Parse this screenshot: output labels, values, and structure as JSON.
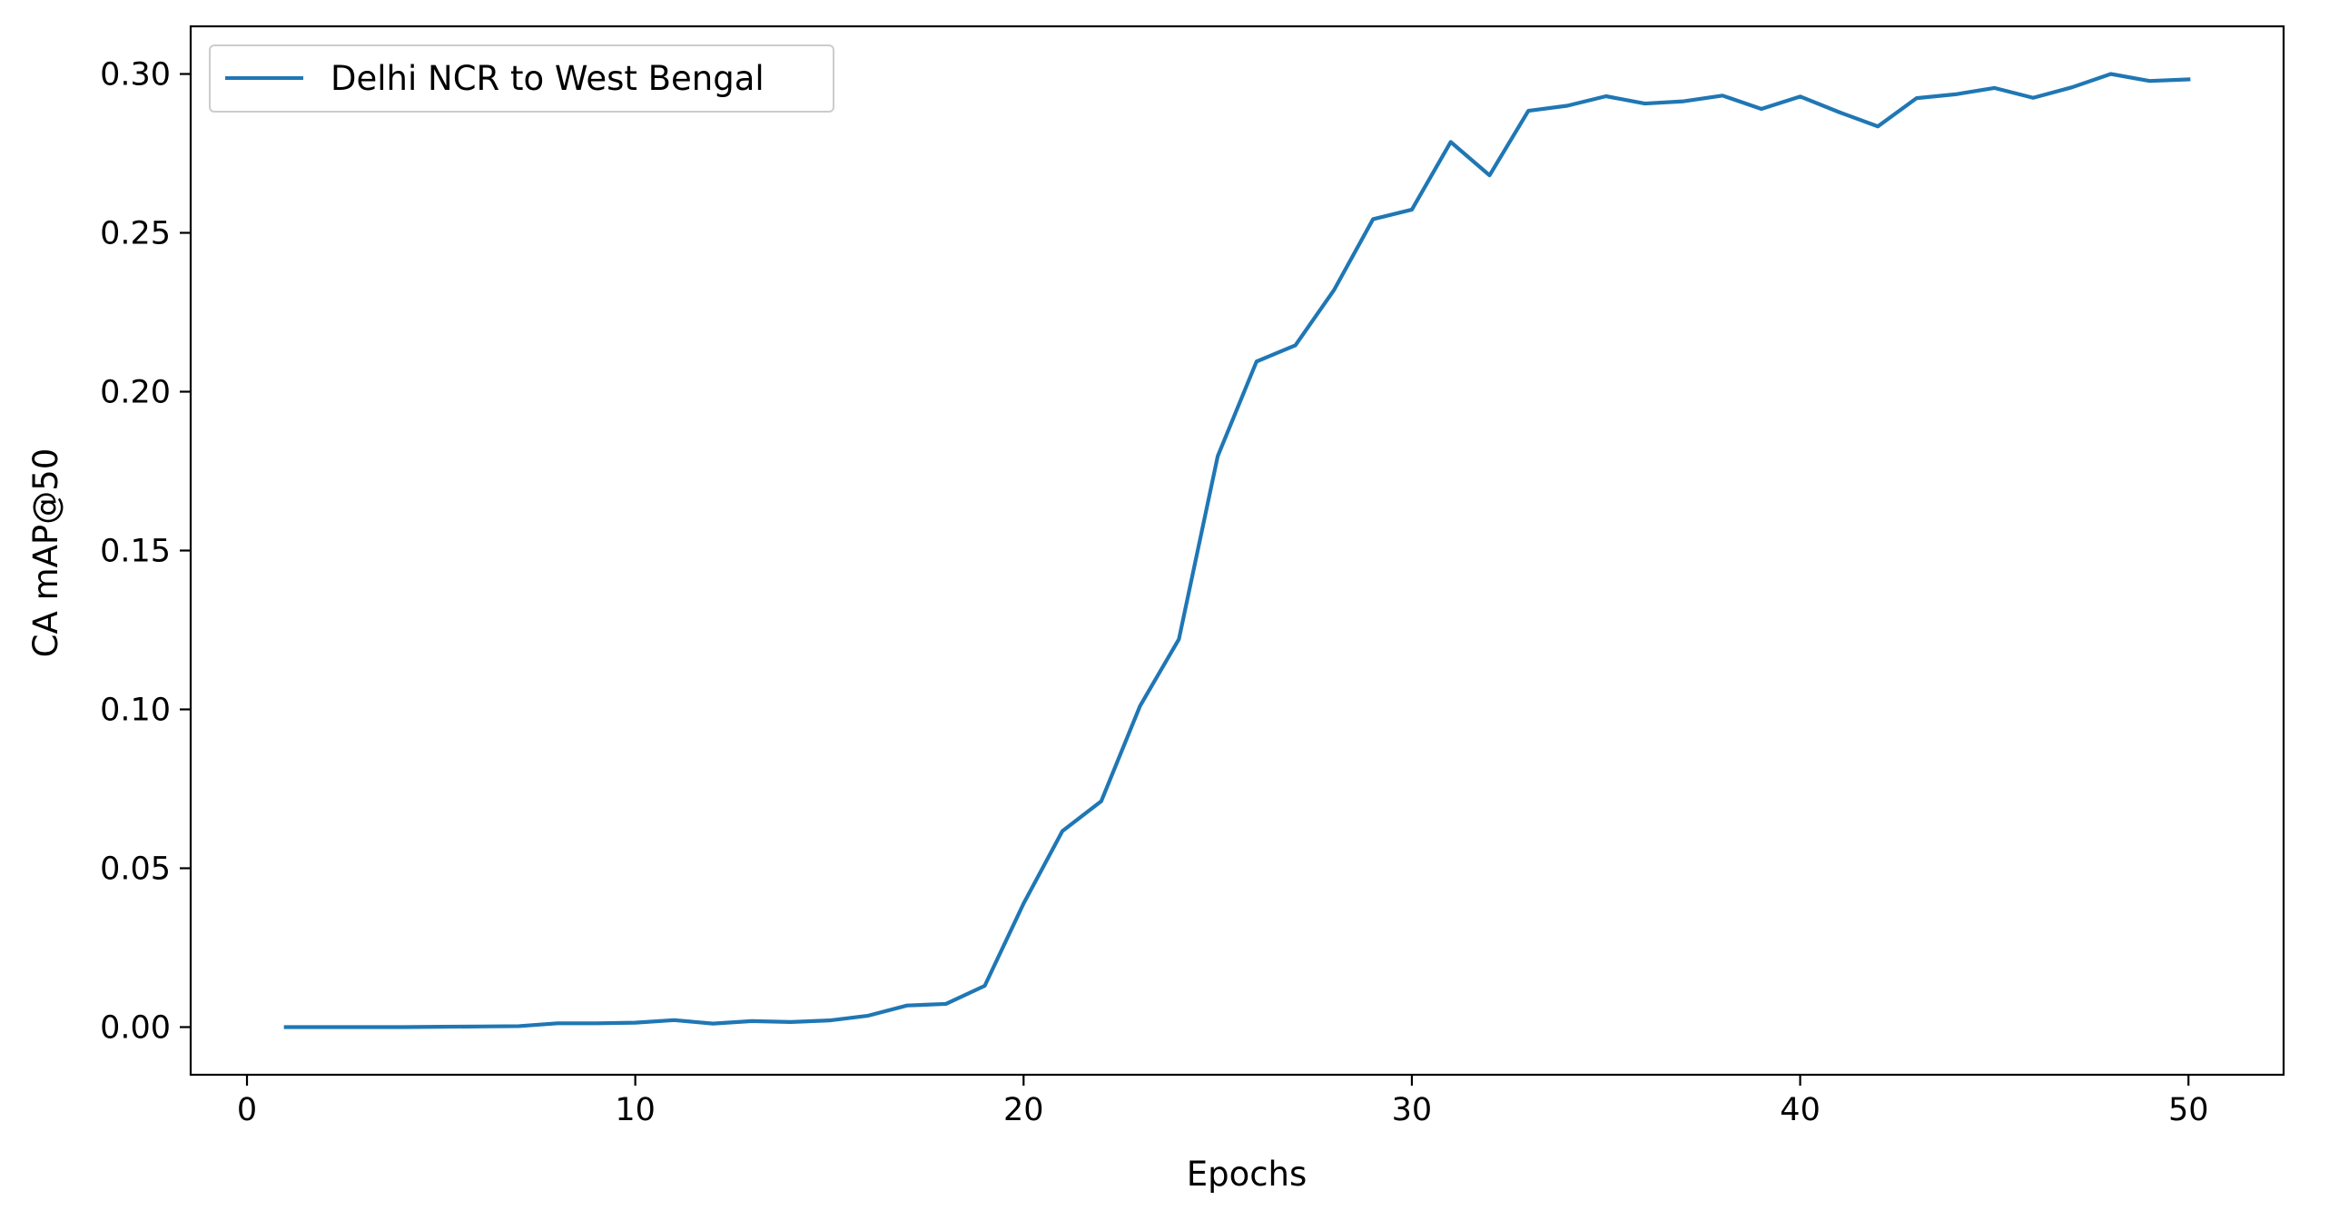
{
  "chart_data": {
    "type": "line",
    "title": "",
    "xlabel": "Epochs",
    "ylabel": "CA mAP@50",
    "xlim": [
      -1.45,
      52.45
    ],
    "ylim": [
      -0.015,
      0.315
    ],
    "x_ticks": [
      0,
      10,
      20,
      30,
      40,
      50
    ],
    "y_ticks": [
      0.0,
      0.05,
      0.1,
      0.15,
      0.2,
      0.25,
      0.3
    ],
    "x_tick_labels": [
      "0",
      "10",
      "20",
      "30",
      "40",
      "50"
    ],
    "y_tick_labels": [
      "0.00",
      "0.05",
      "0.10",
      "0.15",
      "0.20",
      "0.25",
      "0.30"
    ],
    "grid": false,
    "legend_position": "upper left",
    "series": [
      {
        "name": "Delhi NCR to West Bengal",
        "color": "#1f77b4",
        "x": [
          1,
          2,
          3,
          4,
          5,
          6,
          7,
          8,
          9,
          10,
          11,
          12,
          13,
          14,
          15,
          16,
          17,
          18,
          19,
          20,
          21,
          22,
          23,
          24,
          25,
          26,
          27,
          28,
          29,
          30,
          31,
          32,
          33,
          34,
          35,
          36,
          37,
          38,
          39,
          40,
          41,
          42,
          43,
          44,
          45,
          46,
          47,
          48,
          49,
          50
        ],
        "values": [
          0.0,
          0.0,
          0.0,
          0.0,
          0.0001,
          0.0002,
          0.0003,
          0.0012,
          0.0012,
          0.0014,
          0.0022,
          0.0011,
          0.0019,
          0.0016,
          0.0021,
          0.0036,
          0.0068,
          0.0073,
          0.013,
          0.0389,
          0.0617,
          0.0711,
          0.1011,
          0.1221,
          0.1797,
          0.2095,
          0.2146,
          0.2321,
          0.2543,
          0.2573,
          0.2786,
          0.2681,
          0.2884,
          0.29,
          0.293,
          0.2907,
          0.2914,
          0.2932,
          0.289,
          0.2929,
          0.288,
          0.2835,
          0.2924,
          0.2936,
          0.2956,
          0.2925,
          0.2958,
          0.3,
          0.2978,
          0.2983
        ]
      }
    ]
  }
}
